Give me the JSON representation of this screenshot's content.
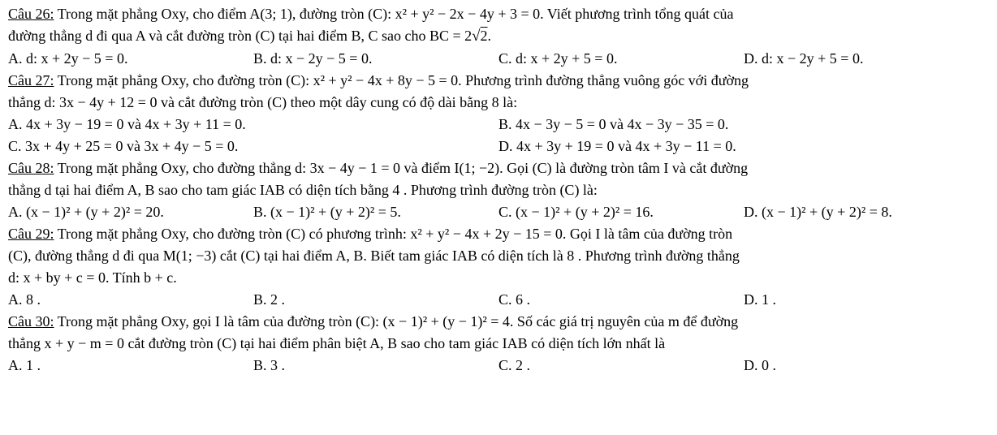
{
  "q26": {
    "label": "Câu 26:",
    "line1": " Trong mặt phẳng Oxy, cho điểm A(3; 1), đường tròn (C): x² + y² − 2x − 4y + 3 = 0. Viết phương trình tổng quát của",
    "line2_a": "đường thẳng d đi qua A và cắt đường tròn (C) tại hai điểm B, C sao cho BC = 2",
    "line2_sqrt": "2",
    "line2_b": ".",
    "A": "A. d: x + 2y − 5 = 0.",
    "B": "B. d: x − 2y − 5 = 0.",
    "C": "C. d: x + 2y + 5 = 0.",
    "D": "D. d: x − 2y + 5 = 0."
  },
  "q27": {
    "label": "Câu 27:",
    "line1": " Trong mặt phẳng Oxy, cho đường tròn (C): x² + y² − 4x + 8y − 5 = 0. Phương trình đường thẳng vuông góc với đường",
    "line2": "thẳng d: 3x − 4y + 12 = 0 và cắt đường tròn (C) theo một dây cung có độ dài bằng 8 là:",
    "A": "A. 4x + 3y − 19 = 0 và 4x + 3y + 11 = 0.",
    "B": "B. 4x − 3y − 5 = 0 và 4x − 3y − 35 = 0.",
    "C": "C. 3x + 4y + 25 = 0 và 3x + 4y − 5 = 0.",
    "D": "D. 4x + 3y + 19 = 0 và 4x + 3y − 11 = 0."
  },
  "q28": {
    "label": "Câu 28:",
    "line1": " Trong mặt phẳng Oxy, cho đường thẳng d: 3x − 4y − 1 = 0 và điểm I(1; −2). Gọi (C) là đường tròn tâm I và cắt đường",
    "line2": "thẳng d tại hai điểm A, B sao cho tam giác IAB có diện tích bằng 4 . Phương trình đường tròn (C) là:",
    "A": "A. (x − 1)² + (y + 2)² = 20.",
    "B": "B. (x − 1)² + (y + 2)² = 5.",
    "C": "C. (x − 1)² + (y + 2)² = 16.",
    "D": "D. (x − 1)² + (y + 2)² = 8."
  },
  "q29": {
    "label": "Câu 29:",
    "line1": " Trong mặt phẳng Oxy, cho đường tròn (C) có phương trình: x² + y² − 4x + 2y − 15 = 0. Gọi I là tâm của đường tròn",
    "line2": "(C), đường thẳng d đi qua M(1; −3) cắt (C) tại hai điểm A, B. Biết tam giác IAB có diện tích là 8 . Phương trình đường thẳng",
    "line3": "d: x + by + c = 0. Tính b + c.",
    "A": "A. 8 .",
    "B": "B. 2 .",
    "C": "C. 6 .",
    "D": "D. 1 ."
  },
  "q30": {
    "label": "Câu 30:",
    "line1": " Trong mặt phẳng Oxy, gọi I là tâm của đường tròn (C): (x − 1)² + (y − 1)² = 4. Số các giá trị nguyên của m để đường",
    "line2": "thẳng x + y − m = 0 cắt đường tròn (C) tại hai điểm phân biệt A, B sao cho tam giác IAB có diện tích lớn nhất là",
    "A": "A. 1 .",
    "B": "B. 3 .",
    "C": "C. 2 .",
    "D": "D. 0 ."
  }
}
